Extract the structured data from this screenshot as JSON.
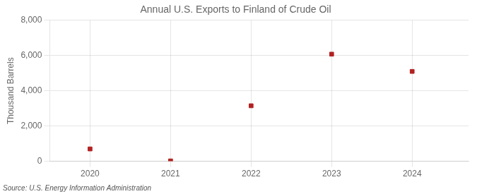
{
  "chart_data": {
    "type": "scatter",
    "title": "Annual U.S. Exports to Finland of Crude Oil",
    "ylabel": "Thousand Barrels",
    "annotations": [
      "Source: U.S. Energy Information Administration"
    ],
    "x": [
      2020,
      2021,
      2022,
      2023,
      2024
    ],
    "values": [
      700,
      20,
      3150,
      6080,
      5100
    ],
    "color": "#b22222",
    "marker": "square",
    "xlim": [
      2019.5,
      2024.7
    ],
    "xticks": [
      2020,
      2021,
      2022,
      2023,
      2024
    ],
    "ylim": [
      0,
      8000
    ],
    "yticks": [
      0,
      {
        "value": 2000,
        "label": "2,000"
      },
      {
        "value": 4000,
        "label": "4,000"
      },
      {
        "value": 6000,
        "label": "6,000"
      },
      {
        "value": 8000,
        "label": "8,000"
      }
    ],
    "grid": true
  }
}
